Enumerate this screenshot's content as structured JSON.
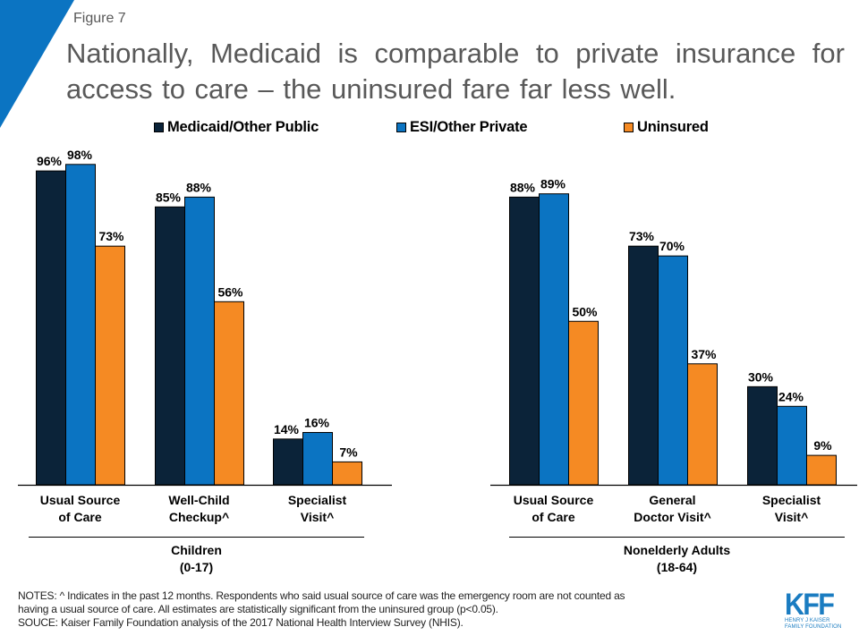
{
  "figure_label": "Figure 7",
  "title": "Nationally, Medicaid is comparable to private insurance for access to care – the uninsured fare far less well.",
  "colors": {
    "medicaid": "#0b2339",
    "private": "#0b74c2",
    "uninsured": "#f58a23",
    "accent_corner": "#0b74c2",
    "text_gray": "#595959"
  },
  "legend": [
    {
      "label": "Medicaid/Other Public",
      "series": "medicaid"
    },
    {
      "label": "ESI/Other Private",
      "series": "private"
    },
    {
      "label": "Uninsured",
      "series": "uninsured"
    }
  ],
  "chart_data": {
    "type": "bar",
    "title": "Nationally, Medicaid is comparable to private insurance for access to care – the uninsured fare far less well.",
    "xlabel": "",
    "ylabel": "",
    "ylim": [
      0,
      100
    ],
    "grid": false,
    "legend_position": "top",
    "value_suffix": "%",
    "groups": [
      {
        "label": "Children",
        "sublabel": "(0-17)",
        "categories": [
          {
            "label_lines": [
              "Usual Source",
              "of Care"
            ],
            "values": [
              96,
              98,
              73
            ]
          },
          {
            "label_lines": [
              "Well-Child",
              "Checkup^"
            ],
            "values": [
              85,
              88,
              56
            ]
          },
          {
            "label_lines": [
              "Specialist",
              "Visit^"
            ],
            "values": [
              14,
              16,
              7
            ]
          }
        ]
      },
      {
        "label": "Nonelderly Adults",
        "sublabel": "(18-64)",
        "categories": [
          {
            "label_lines": [
              "Usual Source",
              "of Care"
            ],
            "values": [
              88,
              89,
              50
            ]
          },
          {
            "label_lines": [
              "General",
              "Doctor Visit^"
            ],
            "values": [
              73,
              70,
              37
            ]
          },
          {
            "label_lines": [
              "Specialist",
              "Visit^"
            ],
            "values": [
              30,
              24,
              9
            ]
          }
        ]
      }
    ],
    "series": [
      {
        "name": "Medicaid/Other Public",
        "key": "medicaid",
        "values": [
          96,
          85,
          14,
          88,
          73,
          30
        ]
      },
      {
        "name": "ESI/Other Private",
        "key": "private",
        "values": [
          98,
          88,
          16,
          89,
          70,
          24
        ]
      },
      {
        "name": "Uninsured",
        "key": "uninsured",
        "values": [
          73,
          56,
          7,
          50,
          37,
          9
        ]
      }
    ],
    "categories": [
      "Usual Source of Care (Children)",
      "Well-Child Checkup^ (Children)",
      "Specialist Visit^ (Children)",
      "Usual Source of Care (Adults)",
      "General Doctor Visit^ (Adults)",
      "Specialist Visit^ (Adults)"
    ]
  },
  "notes": {
    "line1": "NOTES: ^ Indicates in the past 12 months. Respondents who said usual source of care was the emergency room are not counted as",
    "line2": "having a usual source of care. All estimates are statistically significant from the uninsured group (p<0.05).",
    "line3": "SOUCE: Kaiser Family Foundation analysis of the 2017 National Health Interview Survey (NHIS)."
  },
  "logo": {
    "mark": "KFF",
    "line1": "HENRY J KAISER",
    "line2": "FAMILY FOUNDATION"
  }
}
